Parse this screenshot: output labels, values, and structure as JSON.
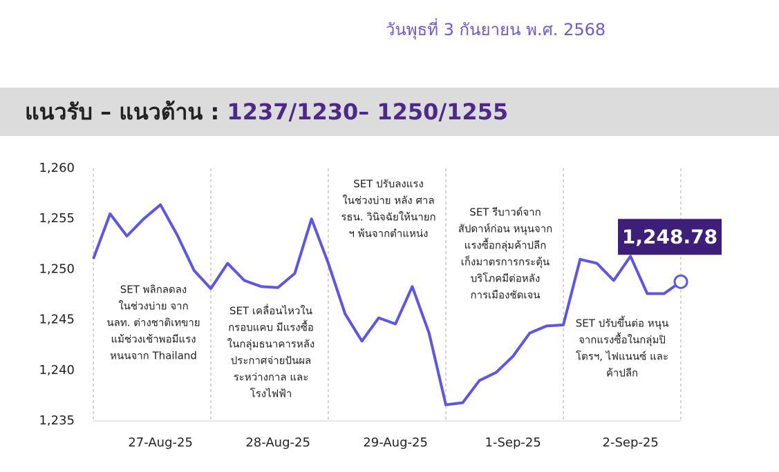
{
  "header": {
    "date": "วันพุธที่ 3 กันยายน พ.ศ. 2568",
    "title": "แนวรับ – แนวต้าน : ",
    "levels": "1237/1230– 1250/1255"
  },
  "chart_data": {
    "type": "line",
    "categories": [
      null,
      null,
      null,
      null,
      "27-Aug-25",
      null,
      null,
      null,
      null,
      null,
      null,
      "28-Aug-25",
      null,
      null,
      null,
      null,
      null,
      null,
      "29-Aug-25",
      null,
      null,
      null,
      null,
      null,
      null,
      "1-Sep-25",
      null,
      null,
      null,
      null,
      null,
      null,
      "2-Sep-25",
      null,
      null,
      null
    ],
    "series": [
      {
        "color": "#5b55ee",
        "values": [
          1251.05,
          1255.5,
          1253.3,
          1255.0,
          1256.4,
          1253.4,
          1249.9,
          1248.1,
          1250.6,
          1248.9,
          1248.3,
          1248.2,
          1249.6,
          1255.0,
          1250.6,
          1245.6,
          1242.9,
          1245.2,
          1244.6,
          1248.3,
          1243.7,
          1236.6,
          1236.8,
          1239.0,
          1239.8,
          1241.4,
          1243.7,
          1244.4,
          1244.5,
          1251.0,
          1250.6,
          1248.9,
          1251.3,
          1247.6,
          1247.6,
          1248.78
        ],
        "value_labels": [
          null,
          null,
          null,
          null,
          null,
          null,
          null,
          null,
          null,
          null,
          null,
          null,
          null,
          null,
          null,
          null,
          null,
          null,
          null,
          null,
          null,
          null,
          null,
          null,
          null,
          null,
          null,
          null,
          null,
          null,
          null,
          null,
          null,
          null,
          null,
          "1,248.78"
        ]
      }
    ],
    "ylim": [
      1235,
      1260
    ],
    "yticks": [
      {
        "value": 1235,
        "label": "1,235"
      },
      {
        "value": 1240,
        "label": "1,240"
      },
      {
        "value": 1245,
        "label": "1,245"
      },
      {
        "value": 1250,
        "label": "1,250"
      },
      {
        "value": 1255,
        "label": "1,255"
      },
      {
        "value": 1260,
        "label": "1,260"
      }
    ],
    "annotations": [
      [
        "SET พลิกลดลง",
        "ในช่วงบ่าย จาก",
        "นลท. ต่างชาติเทขาย",
        "แม้ช่วงเช้าพอมีแรง",
        "หนนจาก Thailand"
      ],
      [
        "SET เคลื่อนไหวใน",
        "กรอบแคบ มีแรงซื้อ",
        "ในกลุ่มธนาคารหลัง",
        "ประกาศจ่ายปันผล",
        "ระหว่างกาล และ",
        "โรงไฟฟ้า"
      ],
      [
        "SET ปรับลงแรง",
        "ในช่วงบ่าย หลัง ศาล",
        "รธน. วินิจฉัยให้นายก",
        "ฯ พ้นจากตำแหน่ง"
      ],
      [
        "SET รีบาวด์จาก",
        "สัปดาห์ก่อน หนุนจาก",
        "แรงซื้อกลุ่มค้าปลีก",
        "เก็งมาตรการกระตุ้น",
        "บริโภคมีต่อหลัง",
        "การเมืองชัดเจน"
      ],
      [
        "SET ปรับขึ้นต่อ หนุน",
        "จากแรงซื้อในกลุ่มปิ",
        "โตรฯ, ไฟแนนซ์ และ",
        "ค้าปลีก"
      ]
    ]
  }
}
